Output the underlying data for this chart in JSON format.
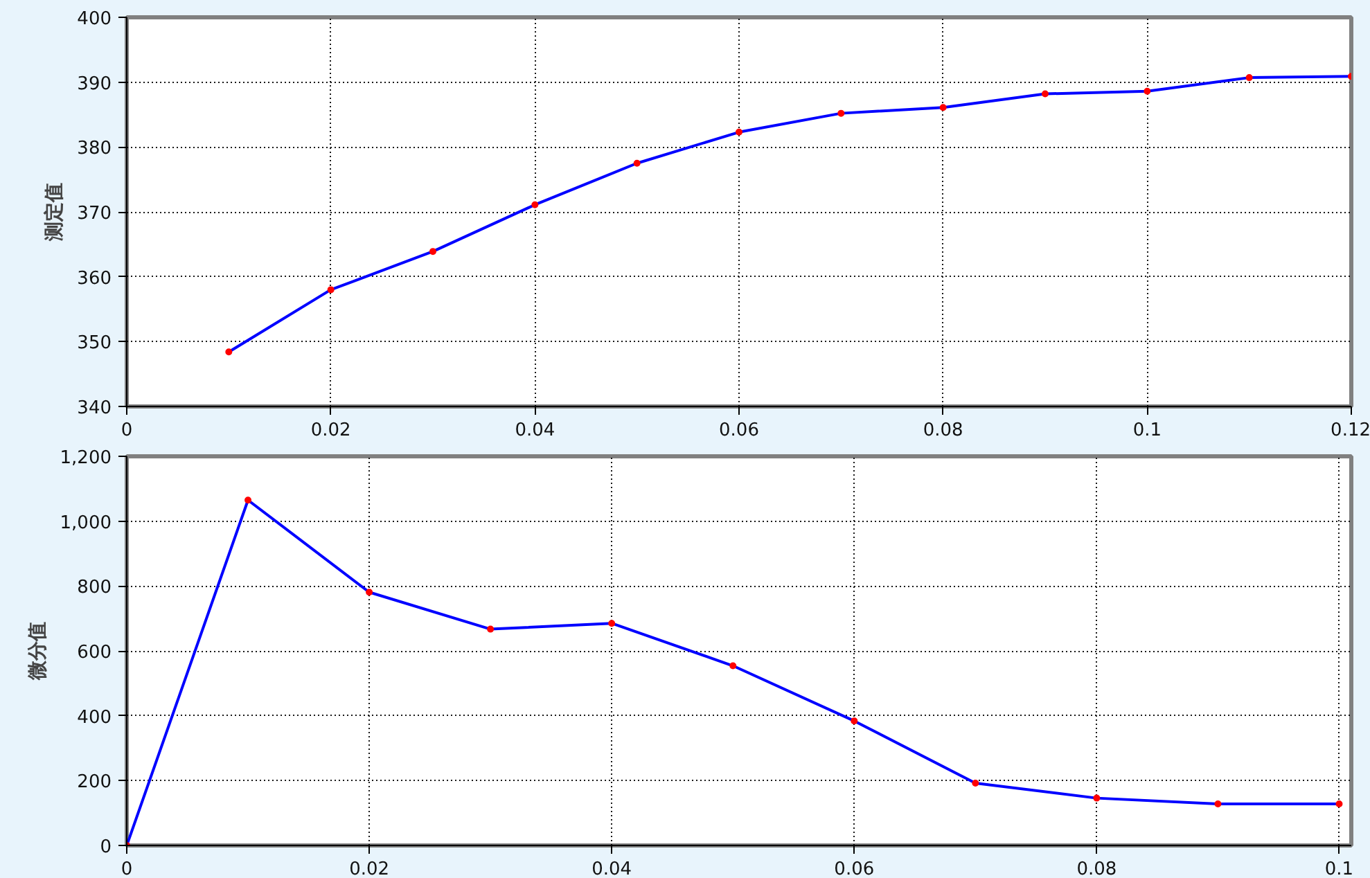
{
  "chart_data": [
    {
      "type": "line",
      "ylabel": "测定值",
      "x": [
        0.01,
        0.02,
        0.03,
        0.04,
        0.05,
        0.06,
        0.07,
        0.08,
        0.09,
        0.1,
        0.11,
        0.12
      ],
      "series": [
        {
          "color": "#0000ff",
          "colors": [
            "#ff0000",
            "#ff0000",
            "#ff0000",
            "#ff0000",
            "#ff0000",
            "#ff0000",
            "#ff0000",
            "#ff0000",
            "#ff0000",
            "#ff0000",
            "#ff0000",
            "#ff0000"
          ],
          "values": [
            348.4,
            358.0,
            363.9,
            371.1,
            377.5,
            382.3,
            385.2,
            386.1,
            388.2,
            388.6,
            390.7,
            390.9
          ]
        }
      ],
      "xlim": [
        0,
        0.12
      ],
      "xticks": [
        0,
        0.02,
        0.04,
        0.06,
        0.08,
        0.1,
        0.12
      ],
      "ylim": [
        340,
        400
      ],
      "yticks": [
        340,
        350,
        360,
        370,
        380,
        390,
        400
      ],
      "grid": true,
      "marker": "circle",
      "line_style": "solid"
    },
    {
      "type": "line",
      "ylabel": "微分值",
      "x": [
        0,
        0.01,
        0.02,
        0.03,
        0.04,
        0.05,
        0.06,
        0.07,
        0.08,
        0.09,
        0.1
      ],
      "series": [
        {
          "color": "#0000ff",
          "colors": [
            "#ff0000",
            "#ff0000",
            "#ff0000",
            "#ff0000",
            "#ff0000",
            "#ff0000",
            "#ff0000",
            "#ff0000",
            "#ff0000",
            "#ff0000",
            "#ff0000"
          ],
          "values": [
            0,
            1065,
            781,
            667,
            685,
            554,
            384,
            192,
            146,
            128,
            128
          ]
        }
      ],
      "xlim": [
        0,
        0.101
      ],
      "xticks": [
        0,
        0.02,
        0.04,
        0.06,
        0.08,
        0.1
      ],
      "ylim": [
        0,
        1200
      ],
      "yticks": [
        0,
        200,
        400,
        600,
        800,
        {
          "value": 1000,
          "label": "1,000"
        },
        {
          "value": 1200,
          "label": "1,200"
        }
      ],
      "grid": true,
      "marker": "circle",
      "line_style": "solid"
    }
  ]
}
